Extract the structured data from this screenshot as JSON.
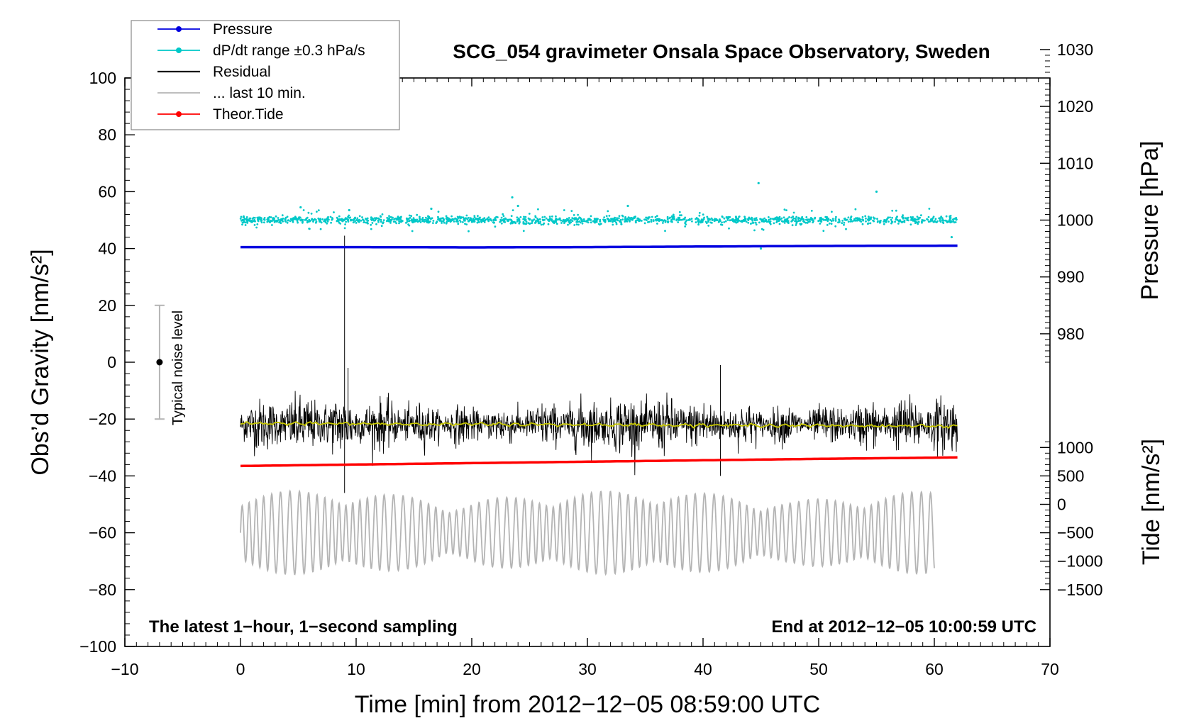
{
  "chart_data": {
    "type": "line",
    "title": "SCG_054 gravimeter Onsala Space Observatory, Sweden",
    "xlabel": "Time [min] from 2012−12−05 08:59:00 UTC",
    "ylabel_left": "Obs’d Gravity [nm/s²]",
    "ylabel_right_top": "Pressure [hPa]",
    "ylabel_right_bottom": "Tide [nm/s²]",
    "xlim": [
      -10,
      70
    ],
    "ylim_left": [
      -100,
      100
    ],
    "x_ticks": [
      -10,
      0,
      10,
      20,
      30,
      40,
      50,
      60,
      70
    ],
    "x_tick_labels": [
      "−10",
      "0",
      "10",
      "20",
      "30",
      "40",
      "50",
      "60",
      "70"
    ],
    "y_left_ticks": [
      -100,
      -80,
      -60,
      -40,
      -20,
      0,
      20,
      40,
      60,
      80,
      100
    ],
    "y_left_tick_labels": [
      "−100",
      "−80",
      "−60",
      "−40",
      "−20",
      "0",
      "20",
      "40",
      "60",
      "80",
      "100"
    ],
    "pressure_axis": {
      "ticks": [
        980,
        990,
        1000,
        1010,
        1020,
        1030
      ],
      "tick_labels": [
        "980",
        "990",
        "1000",
        "1010",
        "1020",
        "1030"
      ],
      "gravity_at_1000": 50,
      "gravity_per_hpa": 2
    },
    "tide_axis": {
      "ticks": [
        -1500,
        -1000,
        -500,
        0,
        500,
        1000
      ],
      "tick_labels": [
        "−1500",
        "−1000",
        "−500",
        "0",
        "500",
        "1000"
      ],
      "gravity_at_0": -50,
      "gravity_per_unit": 0.02
    },
    "legend": [
      {
        "label": "Pressure",
        "color": "#0000e0",
        "marker": true
      },
      {
        "label": "dP/dt range ±0.3 hPa/s",
        "color": "#00c8c8",
        "marker": true
      },
      {
        "label": "Residual",
        "color": "#000000",
        "marker": false
      },
      {
        "label": "... last 10 min.",
        "color": "#b4b4b4",
        "marker": false
      },
      {
        "label": "Theor.Tide",
        "color": "#ff0000",
        "marker": true
      }
    ],
    "series": [
      {
        "name": "Pressure",
        "color": "#0000e0",
        "x": [
          0,
          10,
          20,
          30,
          40,
          50,
          62
        ],
        "y": [
          40.5,
          40.5,
          40.4,
          40.5,
          40.7,
          40.9,
          41.0
        ]
      },
      {
        "name": "dP/dt range ±0.3 hPa/s",
        "color": "#00c8c8",
        "center": 50,
        "spread": 1.5,
        "outliers": [
          [
            5.2,
            54.5
          ],
          [
            9.4,
            53.5
          ],
          [
            16.5,
            54
          ],
          [
            23.5,
            58
          ],
          [
            24,
            55
          ],
          [
            33.5,
            55
          ],
          [
            44.8,
            63
          ],
          [
            45,
            40
          ],
          [
            55,
            60
          ],
          [
            61.5,
            44
          ]
        ]
      },
      {
        "name": "Residual",
        "color": "#000000",
        "center": -22,
        "amplitude": 10,
        "extremes": [
          [
            9,
            44.5
          ],
          [
            9.3,
            -2
          ],
          [
            41.5,
            -1
          ],
          [
            41.5,
            -40
          ],
          [
            9,
            -46
          ]
        ]
      },
      {
        "name": "Residual smoothed",
        "color": "#c8c800",
        "x": [
          0,
          62
        ],
        "y": [
          -21.5,
          -22.5
        ]
      },
      {
        "name": "... last 10 min.",
        "color": "#b4b4b4",
        "x_range": [
          0,
          60
        ],
        "center": -60,
        "amplitude": 14
      },
      {
        "name": "Theor.Tide",
        "color": "#ff0000",
        "x": [
          0,
          10,
          20,
          30,
          40,
          50,
          62
        ],
        "y": [
          -36.5,
          -36,
          -35.5,
          -35,
          -34.5,
          -34,
          -33.5
        ]
      }
    ],
    "noise_bar": {
      "label": "Typical noise level",
      "x": -7,
      "center": 0,
      "half_range": 20
    },
    "annotations": {
      "bottom_left": "The latest 1−hour, 1−second sampling",
      "bottom_right": "End at 2012−12−05 10:00:59 UTC"
    }
  }
}
